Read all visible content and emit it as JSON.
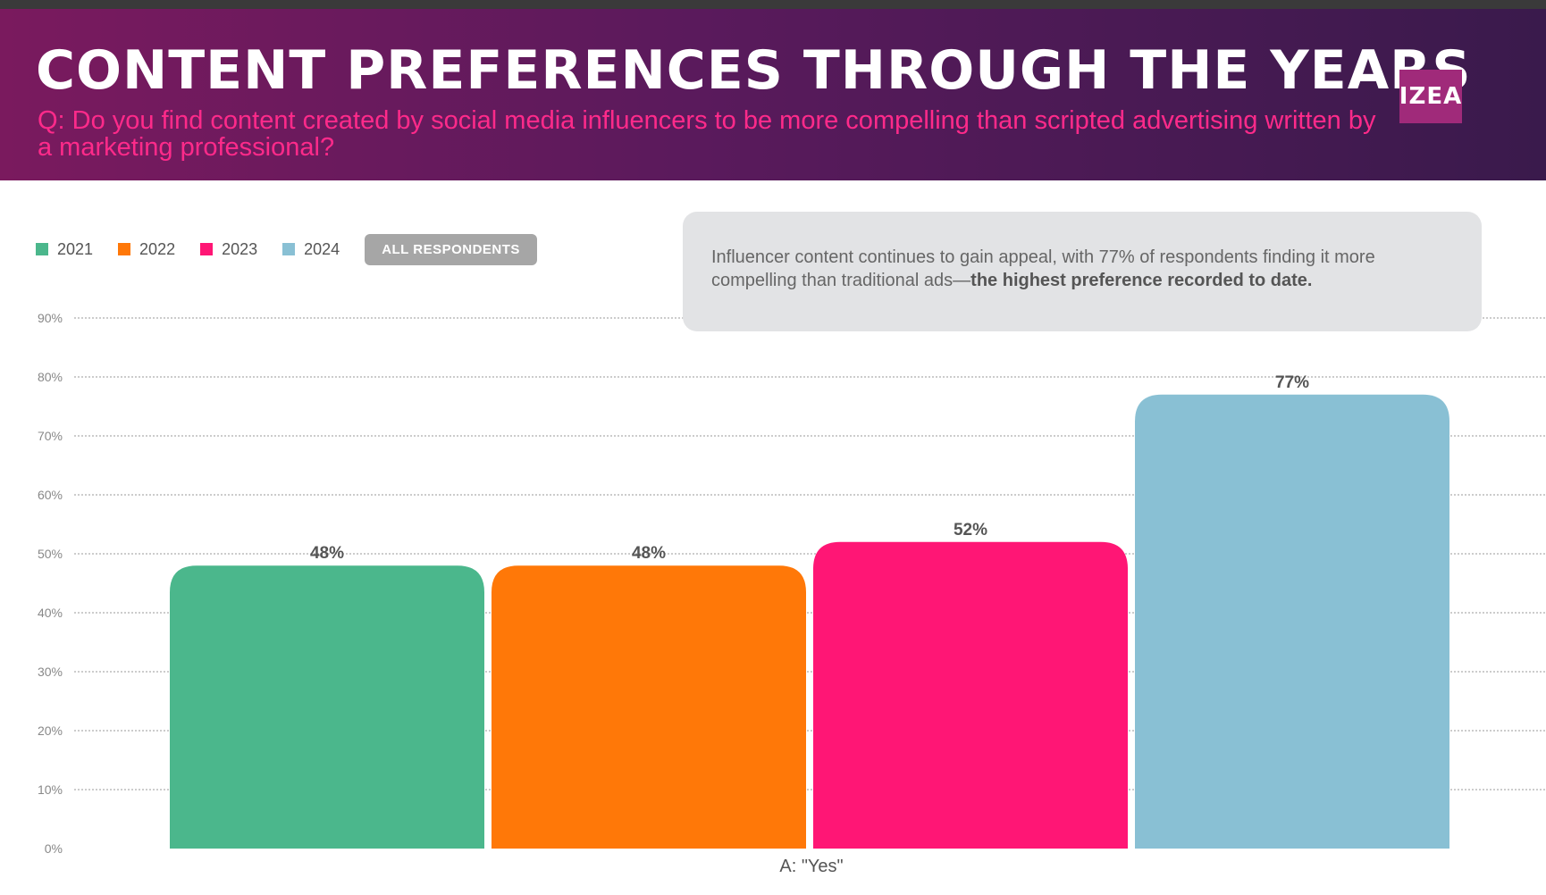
{
  "header": {
    "title": "CONTENT PREFERENCES THROUGH THE YEARS",
    "subtitle": "Q: Do you find content created by social media influencers to be more compelling than scripted advertising written by a marketing professional?",
    "logo_text": "IZEA"
  },
  "legend": {
    "items": [
      {
        "label": "2021",
        "color": "#4bb78c"
      },
      {
        "label": "2022",
        "color": "#ff7808"
      },
      {
        "label": "2023",
        "color": "#ff1675"
      },
      {
        "label": "2024",
        "color": "#89c0d4"
      }
    ],
    "filter_label": "ALL RESPONDENTS"
  },
  "callout": {
    "text": "Influencer content continues to gain appeal, with 77% of respondents finding it more compelling than traditional ads—",
    "bold": "the highest preference recorded to date."
  },
  "chart_data": {
    "type": "bar",
    "categories": [
      "A: \"Yes\""
    ],
    "series": [
      {
        "name": "2021",
        "values": [
          48
        ],
        "color": "#4bb78c"
      },
      {
        "name": "2022",
        "values": [
          48
        ],
        "color": "#ff7808"
      },
      {
        "name": "2023",
        "values": [
          52
        ],
        "color": "#ff1675"
      },
      {
        "name": "2024",
        "values": [
          77
        ],
        "color": "#89c0d4"
      }
    ],
    "data_labels": [
      "48%",
      "48%",
      "52%",
      "77%"
    ],
    "ylim": [
      0,
      90
    ],
    "yticks": [
      "0%",
      "10%",
      "20%",
      "30%",
      "40%",
      "50%",
      "60%",
      "70%",
      "80%",
      "90%"
    ],
    "grid": true,
    "legend_position": "top-left"
  }
}
